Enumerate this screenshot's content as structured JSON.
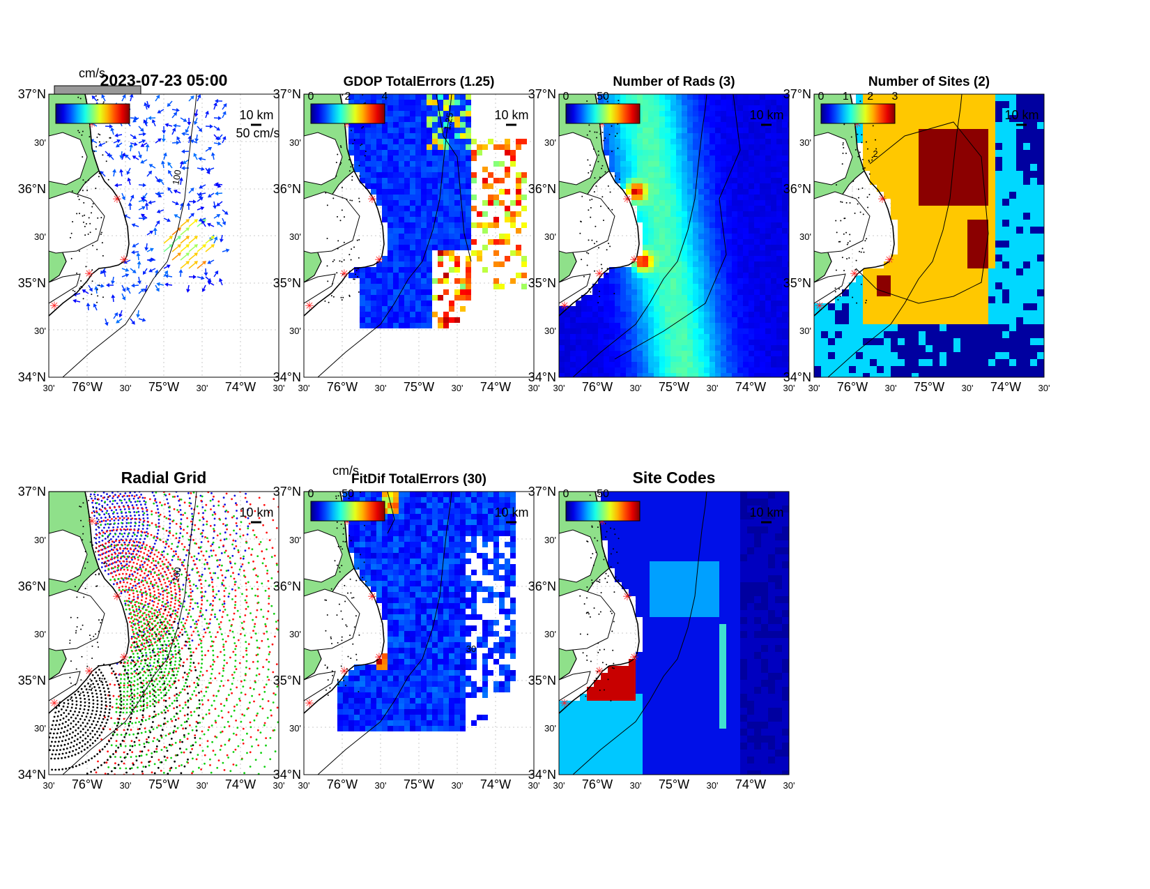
{
  "timestamp": "2023-07-23 05:00",
  "vel_unit": "cm/s",
  "vel_scale_label": "50 cm/s",
  "scale_km_label": "10 km",
  "lat_ticks": [
    "37°N",
    "30'",
    "36°N",
    "30'",
    "35°N",
    "30'",
    "34°N"
  ],
  "lon_ticks": [
    "30'",
    "76°W",
    "30'",
    "75°W",
    "30'",
    "74°W",
    "30'"
  ],
  "contour_100": "100",
  "panels": {
    "velocity": {
      "title": "2023-07-23 05:00",
      "unit": "cm/s"
    },
    "gdop": {
      "title": "GDOP TotalErrors (1.25)",
      "cbar_ticks": [
        "0",
        "2",
        "4"
      ],
      "contour_label": "1.25"
    },
    "rads": {
      "title": "Number of Rads (3)",
      "cbar_ticks": [
        "0",
        "50"
      ]
    },
    "sites": {
      "title": "Number of Sites (2)",
      "cbar_ticks": [
        "0",
        "1",
        "2",
        "3"
      ],
      "contour_label": "2"
    },
    "grid": {
      "title": "Radial Grid"
    },
    "fitdif": {
      "title": "FitDif TotalErrors (30)",
      "unit": "cm/s",
      "cbar_ticks": [
        "0",
        "50"
      ],
      "contour_label": "30"
    },
    "codes": {
      "title": "Site Codes",
      "cbar_ticks": [
        "0",
        "50"
      ]
    }
  },
  "colors": {
    "land": "#8fe08a",
    "site_marker": "#ff2020",
    "grid_site1": "#1010e0",
    "grid_site2": "#ff1010",
    "grid_site3": "#10d010",
    "grid_site4": "#000000"
  }
}
